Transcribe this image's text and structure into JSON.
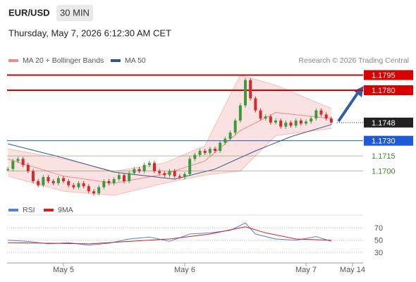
{
  "header": {
    "symbol": "EUR/USD",
    "timeframe": "30 MIN",
    "datetime": "Thursday, May 7, 2026 6:12:30 AM CET"
  },
  "chart_data": [
    {
      "type": "candlestick",
      "credit": "Research © 2026 Trading Central",
      "xlim": [
        -11.16,
        59.3
      ],
      "ylim": [
        1.166,
        1.1803
      ],
      "xticks": [
        {
          "value": 0,
          "label": "May 5"
        },
        {
          "value": 24,
          "label": "May 6"
        },
        {
          "value": 48,
          "label": "May 7"
        },
        {
          "value": 57.2,
          "label": "May 14"
        }
      ],
      "up_color": "#3c9a3c",
      "down_color": "#d42a2a",
      "candles": {
        "x": [
          -11,
          -10,
          -9,
          -8,
          -7,
          -6,
          -5,
          -4,
          -3,
          -2,
          -1,
          0,
          1,
          2,
          3,
          4,
          5,
          6,
          7,
          8,
          9,
          10,
          11,
          12,
          13,
          14,
          15,
          16,
          17,
          18,
          19,
          20,
          21,
          22,
          23,
          24,
          25,
          26,
          27,
          28,
          29,
          30,
          31,
          32,
          33,
          34,
          35,
          36,
          37,
          38,
          39,
          40,
          41,
          42,
          43,
          44,
          45,
          46,
          47,
          48,
          49,
          50,
          51,
          52,
          53
        ],
        "close": [
          1.1702,
          1.171,
          1.1712,
          1.1706,
          1.17,
          1.169,
          1.1686,
          1.1694,
          1.169,
          1.1688,
          1.1693,
          1.169,
          1.1686,
          1.1684,
          1.1688,
          1.1685,
          1.168,
          1.1678,
          1.1684,
          1.169,
          1.1688,
          1.1692,
          1.1696,
          1.169,
          1.1698,
          1.1702,
          1.17,
          1.1706,
          1.1708,
          1.17,
          1.1698,
          1.1696,
          1.17,
          1.1695,
          1.1694,
          1.1697,
          1.1712,
          1.1716,
          1.172,
          1.1718,
          1.1722,
          1.172,
          1.1728,
          1.1732,
          1.1738,
          1.175,
          1.1765,
          1.179,
          1.1772,
          1.176,
          1.1752,
          1.1754,
          1.1748,
          1.175,
          1.1744,
          1.1748,
          1.1745,
          1.175,
          1.1747,
          1.1749,
          1.1752,
          1.176,
          1.1756,
          1.1752,
          1.1748
        ]
      },
      "series": [
        {
          "name": "MA 20 + Bollinger Bands",
          "color": "#f08a8a",
          "x": [
            -11,
            0,
            10,
            20,
            28,
            35,
            42,
            53
          ],
          "values": [
            1.1712,
            1.1695,
            1.1688,
            1.1697,
            1.171,
            1.174,
            1.1758,
            1.1752
          ],
          "upper": [
            1.1722,
            1.1712,
            1.17,
            1.1708,
            1.1725,
            1.1795,
            1.1785,
            1.1762
          ],
          "lower": [
            1.1695,
            1.168,
            1.1676,
            1.1688,
            1.1696,
            1.17,
            1.1735,
            1.1742
          ]
        },
        {
          "name": "MA 50",
          "color": "#34568b",
          "x": [
            -11,
            0,
            10,
            22,
            30,
            38,
            45,
            53
          ],
          "values": [
            1.1727,
            1.1713,
            1.1699,
            1.1692,
            1.1702,
            1.172,
            1.1734,
            1.1746
          ]
        }
      ],
      "levels": [
        {
          "value": 1.1795,
          "label": "1.1795",
          "color": "#d90000",
          "style": "box"
        },
        {
          "value": 1.178,
          "label": "1.1780",
          "color": "#d90000",
          "style": "box"
        },
        {
          "value": 1.1748,
          "label": "1.1748",
          "color": "#222222",
          "style": "current"
        },
        {
          "value": 1.173,
          "label": "1.1730",
          "color": "#1f5bd6",
          "style": "box"
        },
        {
          "value": 1.1715,
          "label": "1.1715",
          "color": "#3a8a2a",
          "style": "text"
        },
        {
          "value": 1.17,
          "label": "1.1700",
          "color": "#3a8a2a",
          "style": "text"
        }
      ]
    },
    {
      "type": "line",
      "xlim": [
        -11.16,
        59.3
      ],
      "ylim": [
        14,
        83
      ],
      "yticks": [
        30,
        50,
        70
      ],
      "grid": true,
      "series": [
        {
          "name": "RSI",
          "color": "#5a7fd6",
          "x": [
            -11,
            -7,
            -3,
            1,
            5,
            9,
            13,
            17,
            21,
            25,
            29,
            33,
            36,
            38,
            42,
            46,
            50,
            53
          ],
          "values": [
            50,
            48,
            44,
            46,
            42,
            45,
            52,
            55,
            48,
            60,
            62,
            66,
            78,
            60,
            52,
            50,
            56,
            48
          ]
        },
        {
          "name": "9MA",
          "color": "#d42020",
          "x": [
            -11,
            -3,
            5,
            13,
            21,
            29,
            36,
            40,
            46,
            53
          ],
          "values": [
            46,
            45,
            44,
            48,
            52,
            60,
            72,
            62,
            52,
            50
          ]
        }
      ]
    }
  ]
}
